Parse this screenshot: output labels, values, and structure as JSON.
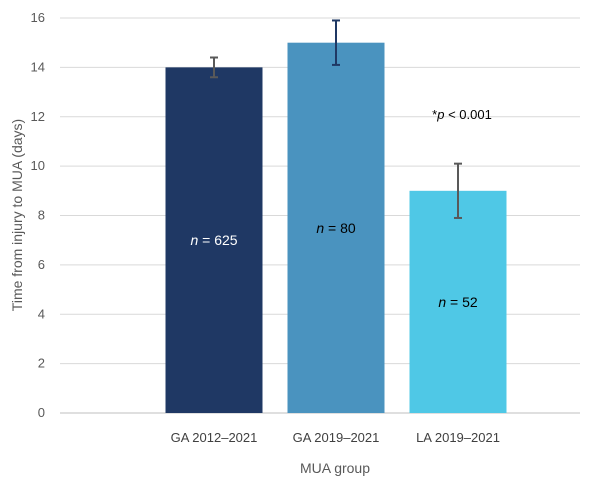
{
  "chart_data": {
    "type": "bar",
    "categories": [
      "GA 2012–2021",
      "GA 2019–2021",
      "LA 2019–2021"
    ],
    "values": [
      14.0,
      15.0,
      9.0
    ],
    "error_bars": [
      {
        "low": 13.6,
        "high": 14.4
      },
      {
        "low": 14.1,
        "high": 15.9
      },
      {
        "low": 7.9,
        "high": 10.1
      }
    ],
    "bar_labels": [
      {
        "prefix": "n",
        "text": " = 625"
      },
      {
        "prefix": "n",
        "text": " = 80"
      },
      {
        "prefix": "n",
        "text": " = 52"
      }
    ],
    "bar_colors": [
      "#1f3864",
      "#4a93bf",
      "#4fc8e6"
    ],
    "bar_label_colors": [
      "#ffffff",
      "#000000",
      "#000000"
    ],
    "error_bar_colors": [
      "#595959",
      "#1f3864",
      "#595959"
    ],
    "ylim": [
      0,
      16
    ],
    "yticks": [
      0,
      2,
      4,
      6,
      8,
      10,
      12,
      14,
      16
    ],
    "ylabel": "Time from injury to MUA (days)",
    "xlabel": "MUA group",
    "annotation": {
      "star": "*",
      "p": "p",
      "rest": " < 0.001"
    },
    "grid": true,
    "legend": "none"
  }
}
